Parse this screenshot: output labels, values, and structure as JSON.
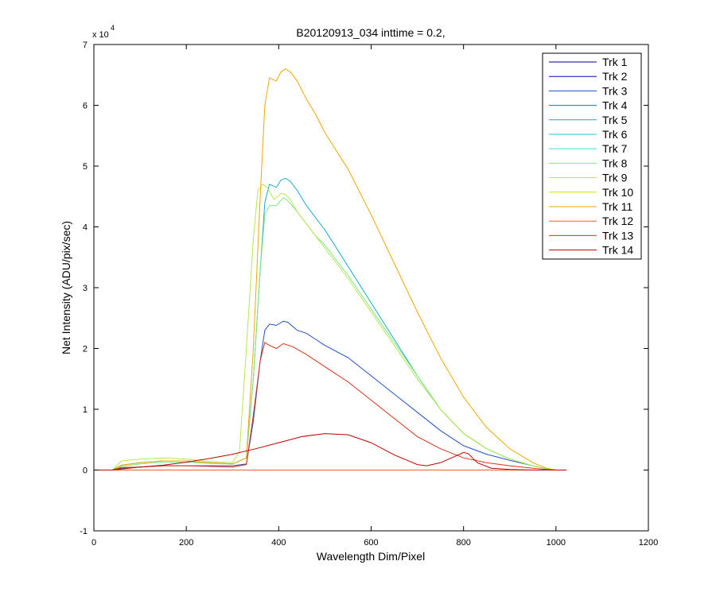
{
  "chart_data": {
    "type": "line",
    "title": "B20120913_034 inttime = 0.2,",
    "xlabel": "Wavelength Dim/Pixel",
    "ylabel": "Net Intensity (ADU/pix/sec)",
    "exponent_label": "x 10",
    "exponent_power": "4",
    "xlim": [
      0,
      1200
    ],
    "ylim": [
      -10000,
      70000
    ],
    "x_ticks": [
      0,
      200,
      400,
      600,
      800,
      1000,
      1200
    ],
    "x_tick_labels": [
      "0",
      "200",
      "400",
      "600",
      "800",
      "1000",
      "1200"
    ],
    "y_ticks": [
      -10000,
      0,
      10000,
      20000,
      30000,
      40000,
      50000,
      60000,
      70000
    ],
    "y_tick_labels": [
      "-1",
      "0",
      "1",
      "2",
      "3",
      "4",
      "5",
      "6",
      "7"
    ],
    "grid": false,
    "legend_position": "top-right",
    "series": [
      {
        "name": "Trk 1",
        "color": "#00008f",
        "x": [
          0,
          1023
        ],
        "y": [
          0,
          0
        ]
      },
      {
        "name": "Trk 2",
        "color": "#0000c8",
        "x": [
          0,
          1023
        ],
        "y": [
          0,
          0
        ]
      },
      {
        "name": "Trk 3",
        "color": "#1f4fbf",
        "x": [
          0,
          40,
          60,
          100,
          150,
          200,
          250,
          300,
          330,
          345,
          360,
          370,
          380,
          395,
          410,
          420,
          440,
          460,
          480,
          500,
          550,
          600,
          650,
          700,
          750,
          800,
          850,
          900,
          950,
          980,
          1000,
          1023
        ],
        "y": [
          0,
          0,
          300,
          500,
          700,
          700,
          700,
          700,
          1000,
          8000,
          18000,
          23000,
          24000,
          23800,
          24500,
          24300,
          23000,
          22500,
          21500,
          20500,
          18500,
          15500,
          12500,
          9500,
          6500,
          4000,
          2600,
          1600,
          700,
          200,
          0,
          0
        ]
      },
      {
        "name": "Trk 4",
        "color": "#0f7ba6",
        "x": [
          0,
          1023
        ],
        "y": [
          0,
          0
        ]
      },
      {
        "name": "Trk 5",
        "color": "#19aacd",
        "x": [
          0,
          40,
          60,
          100,
          150,
          200,
          250,
          300,
          330,
          345,
          360,
          370,
          380,
          395,
          405,
          415,
          425,
          440,
          460,
          480,
          500,
          550,
          600,
          650,
          700,
          750,
          800,
          850,
          900,
          950,
          980,
          1000,
          1023
        ],
        "y": [
          0,
          0,
          800,
          1200,
          1500,
          1500,
          1200,
          1000,
          2000,
          15000,
          33000,
          44000,
          47000,
          46500,
          47700,
          48000,
          47500,
          46000,
          43500,
          41500,
          39500,
          33500,
          27500,
          21500,
          15500,
          10000,
          6000,
          3500,
          1800,
          700,
          200,
          0,
          0
        ]
      },
      {
        "name": "Trk 6",
        "color": "#1ac9df",
        "x": [
          0,
          1023
        ],
        "y": [
          0,
          0
        ]
      },
      {
        "name": "Trk 7",
        "color": "#40e0d0",
        "x": [
          0,
          1023
        ],
        "y": [
          0,
          0
        ]
      },
      {
        "name": "Trk 8",
        "color": "#7fe87f",
        "x": [
          0,
          40,
          60,
          100,
          150,
          200,
          250,
          300,
          330,
          345,
          360,
          370,
          380,
          395,
          410,
          420,
          440,
          460,
          480,
          500,
          550,
          600,
          650,
          700,
          750,
          800,
          850,
          900,
          950,
          980,
          1000,
          1023
        ],
        "y": [
          0,
          0,
          600,
          1000,
          1300,
          1300,
          1100,
          1000,
          2000,
          15000,
          33000,
          42000,
          43500,
          43500,
          44800,
          44300,
          42500,
          40500,
          38500,
          37000,
          32000,
          26500,
          21000,
          15500,
          10000,
          6000,
          3500,
          1800,
          700,
          200,
          0,
          0
        ]
      },
      {
        "name": "Trk 9",
        "color": "#b6e84c",
        "x": [
          0,
          40,
          60,
          100,
          150,
          200,
          250,
          300,
          315,
          330,
          345,
          355,
          365,
          375,
          390,
          405,
          415,
          425,
          440,
          460,
          480,
          500,
          550,
          600,
          650,
          700,
          750,
          800,
          850,
          900,
          950,
          980,
          1000,
          1023
        ],
        "y": [
          0,
          0,
          1500,
          1800,
          2000,
          1800,
          1400,
          1200,
          3000,
          20000,
          38000,
          46000,
          47000,
          46500,
          44500,
          45500,
          45300,
          44500,
          42500,
          40500,
          38500,
          36500,
          31500,
          26000,
          20500,
          15000,
          10000,
          6000,
          3500,
          1800,
          700,
          200,
          0,
          0
        ]
      },
      {
        "name": "Trk 10",
        "color": "#dede00",
        "x": [
          0,
          1023
        ],
        "y": [
          0,
          0
        ]
      },
      {
        "name": "Trk 11",
        "color": "#f0a800",
        "x": [
          0,
          40,
          60,
          100,
          150,
          200,
          250,
          300,
          330,
          345,
          360,
          370,
          380,
          395,
          405,
          415,
          425,
          440,
          460,
          480,
          500,
          550,
          600,
          650,
          700,
          750,
          800,
          850,
          900,
          950,
          980,
          1000,
          1023
        ],
        "y": [
          0,
          0,
          800,
          1200,
          1500,
          1500,
          1200,
          1000,
          2000,
          20000,
          45000,
          60000,
          64500,
          64000,
          65500,
          66000,
          65500,
          64000,
          61000,
          58500,
          55500,
          49500,
          42000,
          34000,
          26000,
          18500,
          12000,
          7000,
          3500,
          1200,
          300,
          0,
          0
        ]
      },
      {
        "name": "Trk 12",
        "color": "#f06020",
        "x": [
          0,
          1023
        ],
        "y": [
          0,
          0
        ]
      },
      {
        "name": "Trk 13",
        "color": "#d83018",
        "x": [
          0,
          40,
          60,
          100,
          150,
          200,
          250,
          300,
          330,
          345,
          360,
          370,
          380,
          395,
          410,
          430,
          460,
          480,
          500,
          550,
          600,
          650,
          700,
          750,
          800,
          850,
          900,
          950,
          980,
          1000,
          1023
        ],
        "y": [
          0,
          0,
          400,
          500,
          700,
          700,
          600,
          500,
          900,
          9000,
          18000,
          21000,
          20500,
          20000,
          20800,
          20300,
          19000,
          18000,
          17000,
          14500,
          11500,
          8500,
          5500,
          3500,
          2000,
          1200,
          700,
          300,
          100,
          0,
          0
        ]
      },
      {
        "name": "Trk 14",
        "color": "#c00000",
        "x": [
          0,
          40,
          100,
          150,
          200,
          250,
          300,
          350,
          400,
          450,
          500,
          550,
          600,
          650,
          700,
          720,
          750,
          780,
          800,
          810,
          830,
          860,
          900,
          950,
          1000,
          1023
        ],
        "y": [
          0,
          0,
          500,
          800,
          1300,
          1900,
          2600,
          3500,
          4500,
          5500,
          6000,
          5800,
          4500,
          2500,
          900,
          700,
          1200,
          2200,
          2900,
          2700,
          1200,
          300,
          100,
          0,
          0,
          0
        ]
      }
    ]
  }
}
